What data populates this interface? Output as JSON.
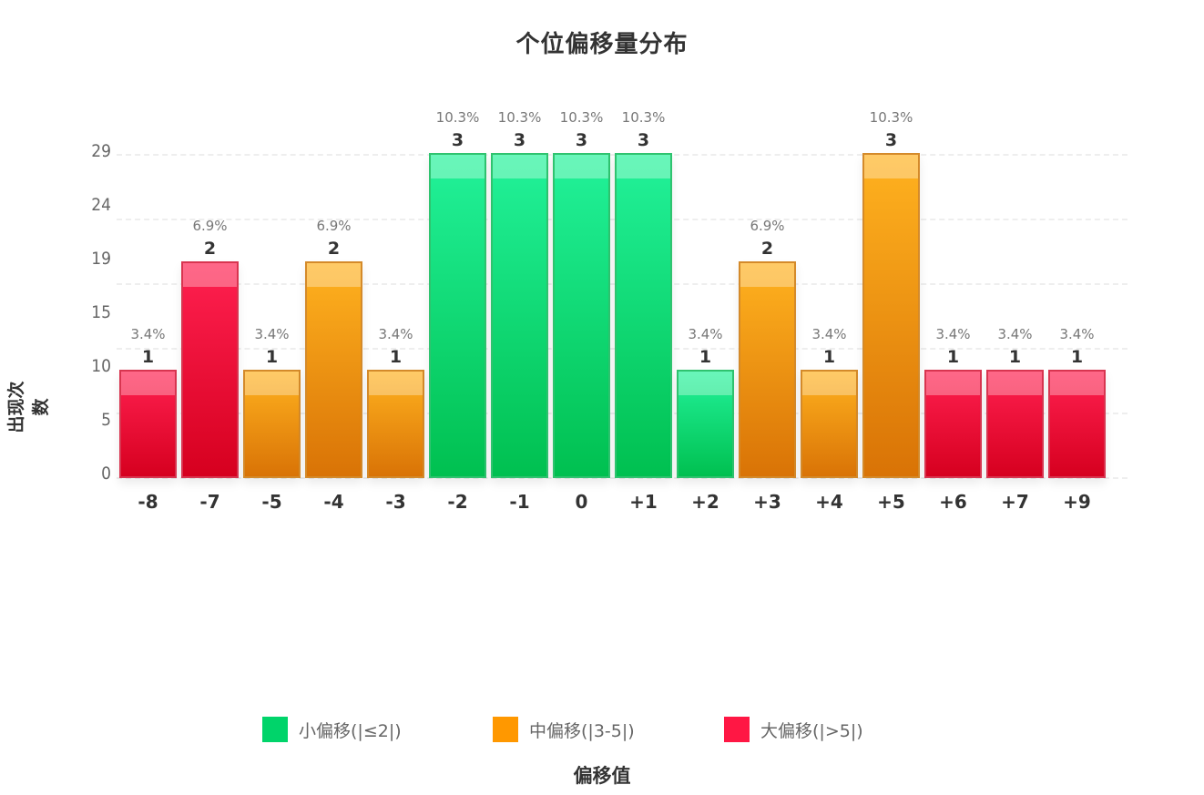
{
  "chart_data": {
    "type": "bar",
    "title": "个位偏移量分布",
    "xlabel": "偏移值",
    "ylabel": "出现次数",
    "categories": [
      "-8",
      "-7",
      "-5",
      "-4",
      "-3",
      "-2",
      "-1",
      "0",
      "+1",
      "+2",
      "+3",
      "+4",
      "+5",
      "+6",
      "+7",
      "+9"
    ],
    "values": [
      1,
      2,
      1,
      2,
      1,
      3,
      3,
      3,
      3,
      1,
      2,
      1,
      3,
      1,
      1,
      1
    ],
    "percent_labels": [
      "3.4%",
      "6.9%",
      "3.4%",
      "6.9%",
      "3.4%",
      "10.3%",
      "10.3%",
      "10.3%",
      "10.3%",
      "3.4%",
      "6.9%",
      "3.4%",
      "10.3%",
      "3.4%",
      "3.4%",
      "3.4%"
    ],
    "groups": [
      "large",
      "large",
      "medium",
      "medium",
      "medium",
      "small",
      "small",
      "small",
      "small",
      "small",
      "medium",
      "medium",
      "medium",
      "large",
      "large",
      "large"
    ],
    "y_tick_labels": [
      "0",
      "5",
      "10",
      "15",
      "19",
      "24",
      "29"
    ],
    "ylim": [
      0,
      3
    ],
    "grid": true,
    "legend_position": "bottom",
    "legend": [
      {
        "key": "small",
        "label": "小偏移(|≤2|)",
        "color": "#00d46a"
      },
      {
        "key": "medium",
        "label": "中偏移(|3-5|)",
        "color": "#ff9800"
      },
      {
        "key": "large",
        "label": "大偏移(|>5|)",
        "color": "#ff1744"
      }
    ]
  }
}
